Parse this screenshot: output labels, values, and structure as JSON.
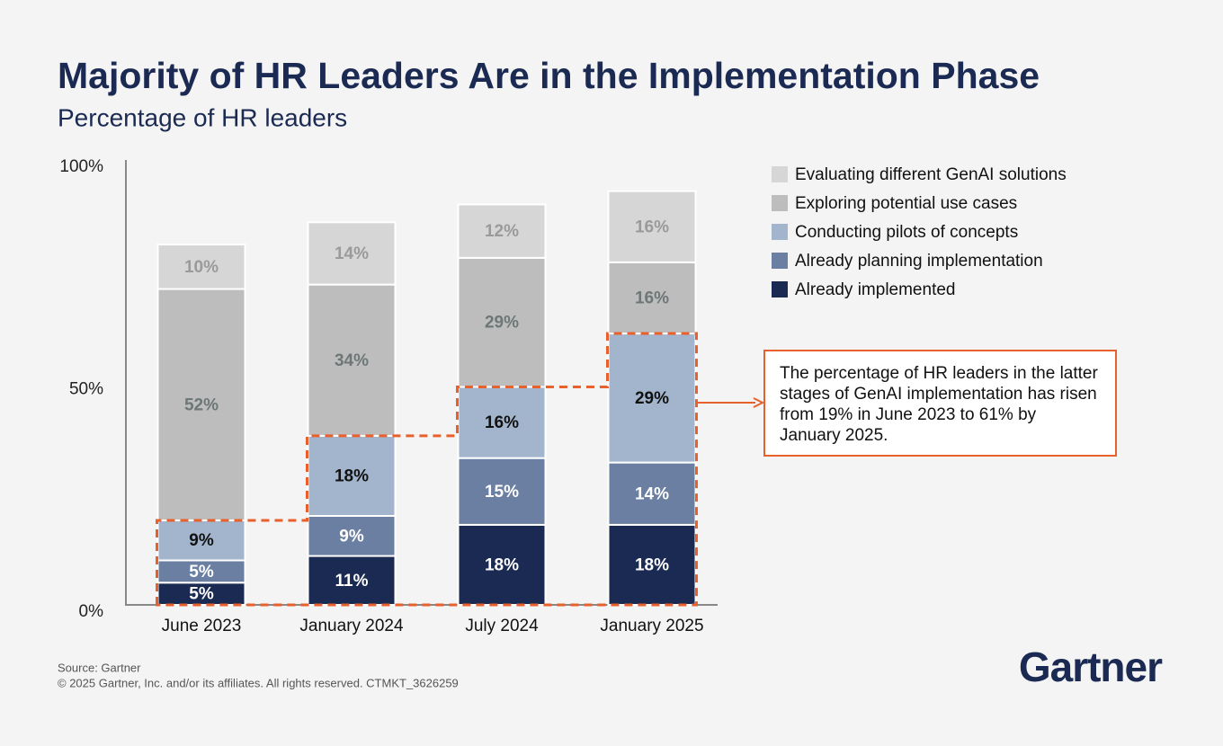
{
  "chart_data": {
    "type": "stacked_bar",
    "title": "Majority of HR Leaders Are in the Implementation Phase",
    "subtitle": "Percentage of HR leaders",
    "categories": [
      "June 2023",
      "January 2024",
      "July 2024",
      "January 2025"
    ],
    "series": [
      {
        "name": "Already implemented",
        "color": "#1b2a52",
        "values": [
          5,
          11,
          18,
          18
        ],
        "value_labels": [
          "5%",
          "11%",
          "18%",
          "18%"
        ]
      },
      {
        "name": "Already planning implementation",
        "color": "#6a7fa2",
        "values": [
          5,
          9,
          15,
          14
        ],
        "value_labels": [
          "5%",
          "9%",
          "15%",
          "14%"
        ]
      },
      {
        "name": "Conducting pilots of concepts",
        "color": "#a3b5cc",
        "values": [
          9,
          18,
          16,
          29
        ],
        "value_labels": [
          "9%",
          "18%",
          "16%",
          "29%"
        ]
      },
      {
        "name": "Exploring potential use cases",
        "color": "#bdbdbd",
        "values": [
          52,
          34,
          29,
          16
        ],
        "value_labels": [
          "52%",
          "34%",
          "29%",
          "16%"
        ]
      },
      {
        "name": "Evaluating different GenAI solutions",
        "color": "#d6d6d6",
        "values": [
          10,
          14,
          12,
          16
        ],
        "value_labels": [
          "10%",
          "14%",
          "12%",
          "16%"
        ]
      }
    ],
    "ylim": [
      0,
      100
    ],
    "yticks": [
      {
        "value": 0,
        "label": "0%"
      },
      {
        "value": 50,
        "label": "50%"
      },
      {
        "value": 100,
        "label": "100%"
      }
    ],
    "grid": false,
    "legend": "top-right",
    "annotation": "The percentage of HR leaders in the latter stages of GenAI implementation has risen from 19% in June 2023 to 61% by January 2025.",
    "source": "Source: Gartner",
    "copyright": "© 2025 Gartner, Inc. and/or its affiliates. All rights reserved. CTMKT_3626259",
    "logo": "Gartner"
  }
}
